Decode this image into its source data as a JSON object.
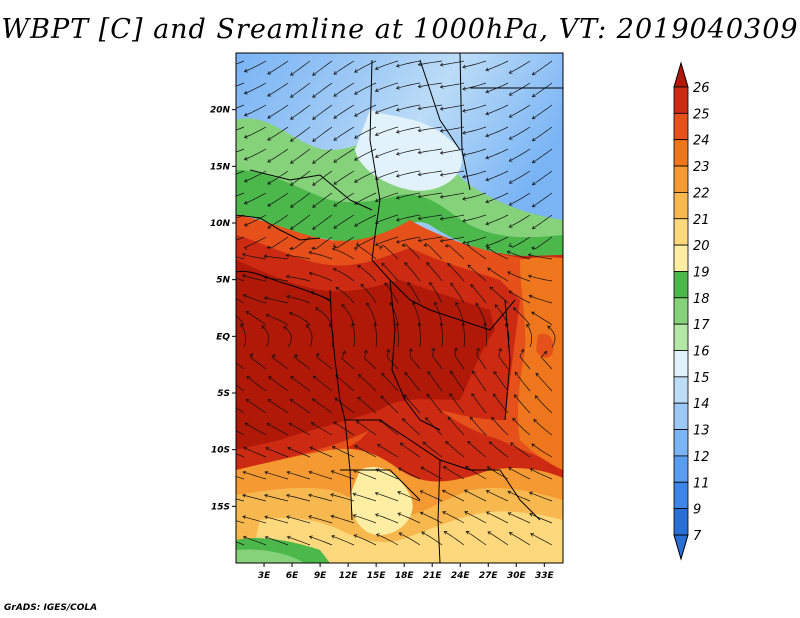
{
  "title": "WBPT [C] and Sreamline at 1000hPa, VT: 2019040309",
  "credit": "GrADS: IGES/COLA",
  "map": {
    "lon_range": [
      0,
      35
    ],
    "lat_range": [
      -20,
      25
    ],
    "lat_ticks": [
      {
        "label": "20N",
        "lat": 20
      },
      {
        "label": "15N",
        "lat": 15
      },
      {
        "label": "10N",
        "lat": 10
      },
      {
        "label": "5N",
        "lat": 5
      },
      {
        "label": "EQ",
        "lat": 0
      },
      {
        "label": "5S",
        "lat": -5
      },
      {
        "label": "10S",
        "lat": -10
      },
      {
        "label": "15S",
        "lat": -15
      }
    ],
    "lon_ticks": [
      {
        "label": "3E",
        "lon": 3
      },
      {
        "label": "6E",
        "lon": 6
      },
      {
        "label": "9E",
        "lon": 9
      },
      {
        "label": "12E",
        "lon": 12
      },
      {
        "label": "15E",
        "lon": 15
      },
      {
        "label": "18E",
        "lon": 18
      },
      {
        "label": "21E",
        "lon": 21
      },
      {
        "label": "24E",
        "lon": 24
      },
      {
        "label": "27E",
        "lon": 27
      },
      {
        "label": "30E",
        "lon": 30
      },
      {
        "label": "33E",
        "lon": 33
      }
    ]
  },
  "colorbar": {
    "levels": [
      "7",
      "9",
      "11",
      "12",
      "13",
      "14",
      "15",
      "16",
      "17",
      "18",
      "19",
      "20",
      "21",
      "22",
      "23",
      "24",
      "25",
      "26"
    ],
    "colors": [
      "#2a6fd6",
      "#3d85e6",
      "#5a9cf0",
      "#7ab4f5",
      "#9cc8f5",
      "#bcdcf7",
      "#e2f2fa",
      "#b4e8a6",
      "#86d27a",
      "#4cb84c",
      "#fdeea4",
      "#fdd87c",
      "#f8b850",
      "#f59a32",
      "#ee761c",
      "#e6501a",
      "#cc2a12",
      "#b01808"
    ]
  }
}
